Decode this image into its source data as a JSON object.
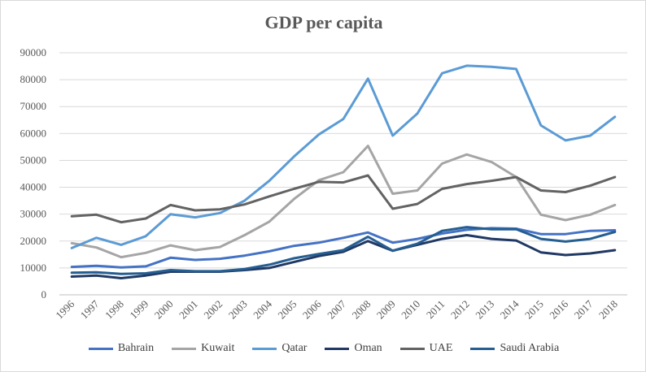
{
  "chart_data": {
    "type": "line",
    "title": "GDP per capita",
    "xlabel": "",
    "ylabel": "",
    "ylim": [
      0,
      90000
    ],
    "yticks": [
      0,
      10000,
      20000,
      30000,
      40000,
      50000,
      60000,
      70000,
      80000,
      90000
    ],
    "grid": true,
    "legend_position": "bottom",
    "categories": [
      "1996",
      "1997",
      "1998",
      "1999",
      "2000",
      "2001",
      "2002",
      "2003",
      "2004",
      "2005",
      "2006",
      "2007",
      "2008",
      "2009",
      "2010",
      "2011",
      "2012",
      "2013",
      "2014",
      "2015",
      "2016",
      "2017",
      "2018"
    ],
    "series": [
      {
        "name": "Bahrain",
        "color": "#4472c4",
        "values": [
          10400,
          10800,
          10200,
          10600,
          13800,
          13000,
          13400,
          14600,
          16200,
          18200,
          19400,
          21200,
          23200,
          19400,
          20800,
          22800,
          24200,
          24800,
          24600,
          22600,
          22600,
          23800,
          24000
        ]
      },
      {
        "name": "Kuwait",
        "color": "#a5a5a5",
        "values": [
          19200,
          17600,
          14000,
          15600,
          18400,
          16600,
          17800,
          22200,
          27200,
          35600,
          42600,
          45600,
          55400,
          37600,
          38800,
          48800,
          52200,
          49400,
          43800,
          29800,
          27800,
          29800,
          33400
        ]
      },
      {
        "name": "Qatar",
        "color": "#5b9bd5",
        "values": [
          17400,
          21200,
          18600,
          21800,
          30000,
          28800,
          30400,
          35000,
          42400,
          51400,
          59600,
          65400,
          80400,
          59200,
          67400,
          82400,
          85200,
          84800,
          84000,
          63000,
          57400,
          59200,
          66200
        ]
      },
      {
        "name": "Oman",
        "color": "#203864",
        "values": [
          6800,
          7200,
          6200,
          7200,
          8600,
          8600,
          8600,
          9200,
          10000,
          12200,
          14400,
          16000,
          20000,
          16400,
          18600,
          20800,
          22200,
          20800,
          20200,
          15800,
          14800,
          15400,
          16600
        ]
      },
      {
        "name": "UAE",
        "color": "#636363",
        "values": [
          29200,
          29800,
          27000,
          28400,
          33400,
          31400,
          31800,
          33600,
          36600,
          39400,
          42000,
          41800,
          44400,
          32000,
          33800,
          39400,
          41200,
          42400,
          43800,
          38800,
          38200,
          40600,
          43800
        ]
      },
      {
        "name": "Saudi Arabia",
        "color": "#255e91",
        "values": [
          8200,
          8400,
          7800,
          8000,
          9200,
          8800,
          8800,
          9600,
          11200,
          13600,
          15200,
          16600,
          21600,
          16400,
          19000,
          23800,
          25200,
          24400,
          24400,
          20800,
          19800,
          20800,
          23400
        ]
      }
    ]
  }
}
